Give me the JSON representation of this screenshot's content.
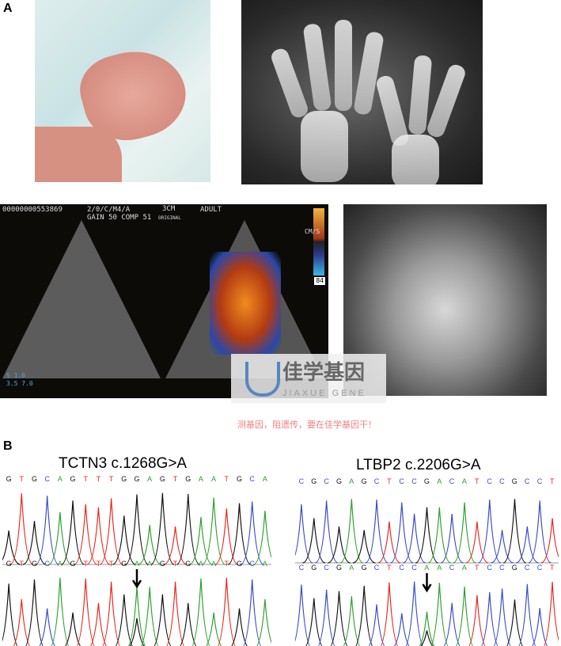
{
  "panels": {
    "a_label": "A",
    "b_label": "B"
  },
  "echo": {
    "id": "00000000553869",
    "mode": "2/0/C/M4/A",
    "depth": "3CM",
    "original": "ORIGINAL",
    "gain": "GAIN 50 COMP 51",
    "preset": "ADULT",
    "units": "CM/S",
    "scale": "84",
    "scale_bottom": "S 1.0\n3.5 7.0"
  },
  "watermark": {
    "logo_cn": "佳学基因",
    "logo_en": "JIAXUE GENE",
    "slogan": "测基因，阻遗传，要在佳学基因干！"
  },
  "sequencing": [
    {
      "title": "TCTN3 c.1268G>A",
      "reference": "GTGCAGTTTGGAGTGAATGCA",
      "patient": "GTGCAGTTTGAAGTGAATGCA"
    },
    {
      "title": "LTBP2 c.2206G>A",
      "reference": "CGCGAGCTCCGACATCCGCCT",
      "patient": "CGCGAGCTCCAACATCCGCCT"
    }
  ],
  "base_colors": {
    "A": "#2ca02c",
    "C": "#3b4bc8",
    "G": "#111111",
    "T": "#e8281e"
  }
}
